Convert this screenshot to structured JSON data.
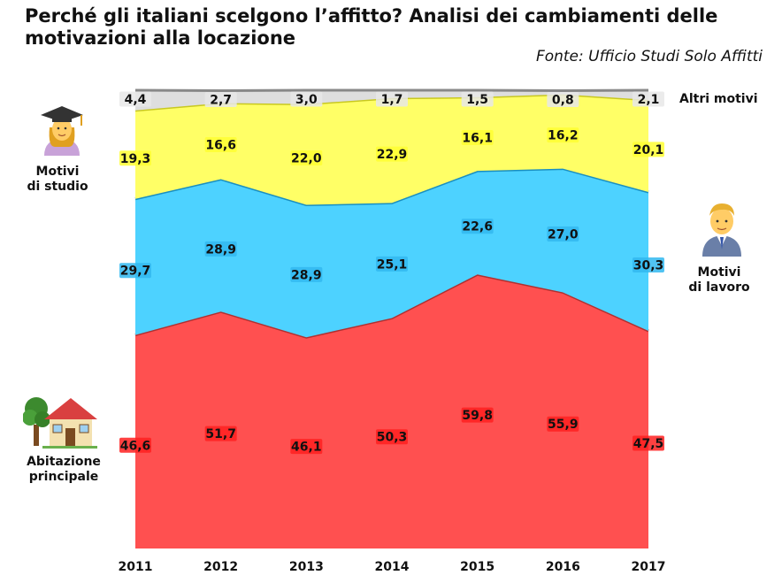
{
  "title": "Perché gli italiani scelgono l’affitto? Analisi dei cambiamenti delle motivazioni alla locazione",
  "source": "Fonte: Ufficio Studi Solo Affitti",
  "labels": {
    "altri": "Altri motivi",
    "studio_1": "Motivi",
    "studio_2": "di studio",
    "lavoro_1": "Motivi",
    "lavoro_2": "di lavoro",
    "abitazione_1": "Abitazione",
    "abitazione_2": "principale"
  },
  "icons": {
    "studio": "student-icon",
    "lavoro": "businessman-icon",
    "abitazione": "house-with-tree-icon"
  },
  "chart_data": {
    "type": "area",
    "stacked": true,
    "x": [
      "2011",
      "2012",
      "2013",
      "2014",
      "2015",
      "2016",
      "2017"
    ],
    "ylim": [
      0,
      100
    ],
    "grid": false,
    "series": [
      {
        "name": "Abitazione principale",
        "color": "#ff5050",
        "values": [
          46.6,
          51.7,
          46.1,
          50.3,
          59.8,
          55.9,
          47.5
        ],
        "labels": [
          "46,6",
          "51,7",
          "46,1",
          "50,3",
          "59,8",
          "55,9",
          "47,5"
        ]
      },
      {
        "name": "Motivi di lavoro",
        "color": "#4dd2ff",
        "values": [
          29.7,
          28.9,
          28.9,
          25.1,
          22.6,
          27.0,
          30.3
        ],
        "labels": [
          "29,7",
          "28,9",
          "28,9",
          "25,1",
          "22,6",
          "27,0",
          "30,3"
        ]
      },
      {
        "name": "Motivi di studio",
        "color": "#ffff66",
        "values": [
          19.3,
          16.6,
          22.0,
          22.9,
          16.1,
          16.2,
          20.1
        ],
        "labels": [
          "19,3",
          "16,6",
          "22,0",
          "22,9",
          "16,1",
          "16,2",
          "20,1"
        ]
      },
      {
        "name": "Altri motivi",
        "color": "#dedede",
        "values": [
          4.4,
          2.7,
          3.0,
          1.7,
          1.5,
          0.8,
          2.1
        ],
        "labels": [
          "4,4",
          "2,7",
          "3,0",
          "1,7",
          "1,5",
          "0,8",
          "2,1"
        ]
      }
    ]
  }
}
